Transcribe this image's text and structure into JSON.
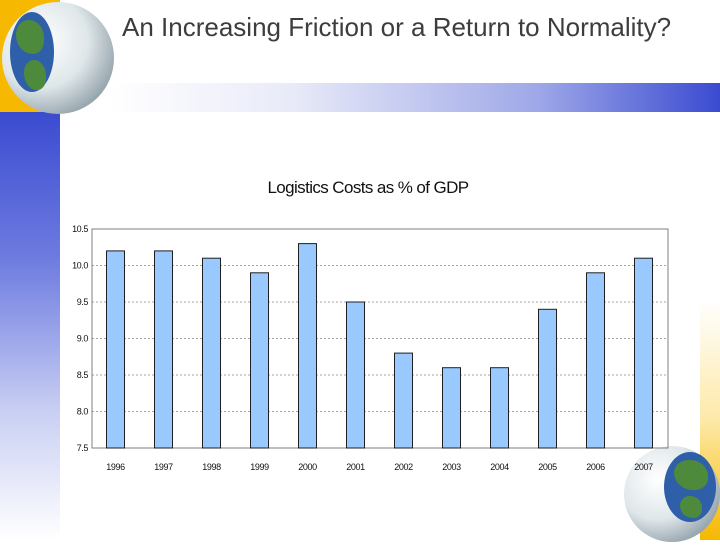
{
  "slide": {
    "title": "An Increasing Friction or a Return to Normality?"
  },
  "colors": {
    "bar_fill": "#99c9ff",
    "bar_stroke": "#1f1f1f",
    "grid": "#a6a6a6",
    "band_blue": "#3a4bd0",
    "accent_yellow": "#f6b800"
  },
  "chart_data": {
    "type": "bar",
    "title": "Logistics Costs as % of GDP",
    "categories": [
      "1996",
      "1997",
      "1998",
      "1999",
      "2000",
      "2001",
      "2002",
      "2003",
      "2004",
      "2005",
      "2006",
      "2007"
    ],
    "values": [
      10.2,
      10.2,
      10.1,
      9.9,
      10.3,
      9.5,
      8.8,
      8.6,
      8.6,
      9.4,
      9.9,
      10.1
    ],
    "ylim": [
      7.5,
      10.5
    ],
    "yticks": [
      "10.5",
      "10.0",
      "9.5",
      "9.0",
      "8.5",
      "8.0",
      "7.5"
    ],
    "xlabel": "",
    "ylabel": "",
    "grid": true,
    "legend": "none"
  }
}
